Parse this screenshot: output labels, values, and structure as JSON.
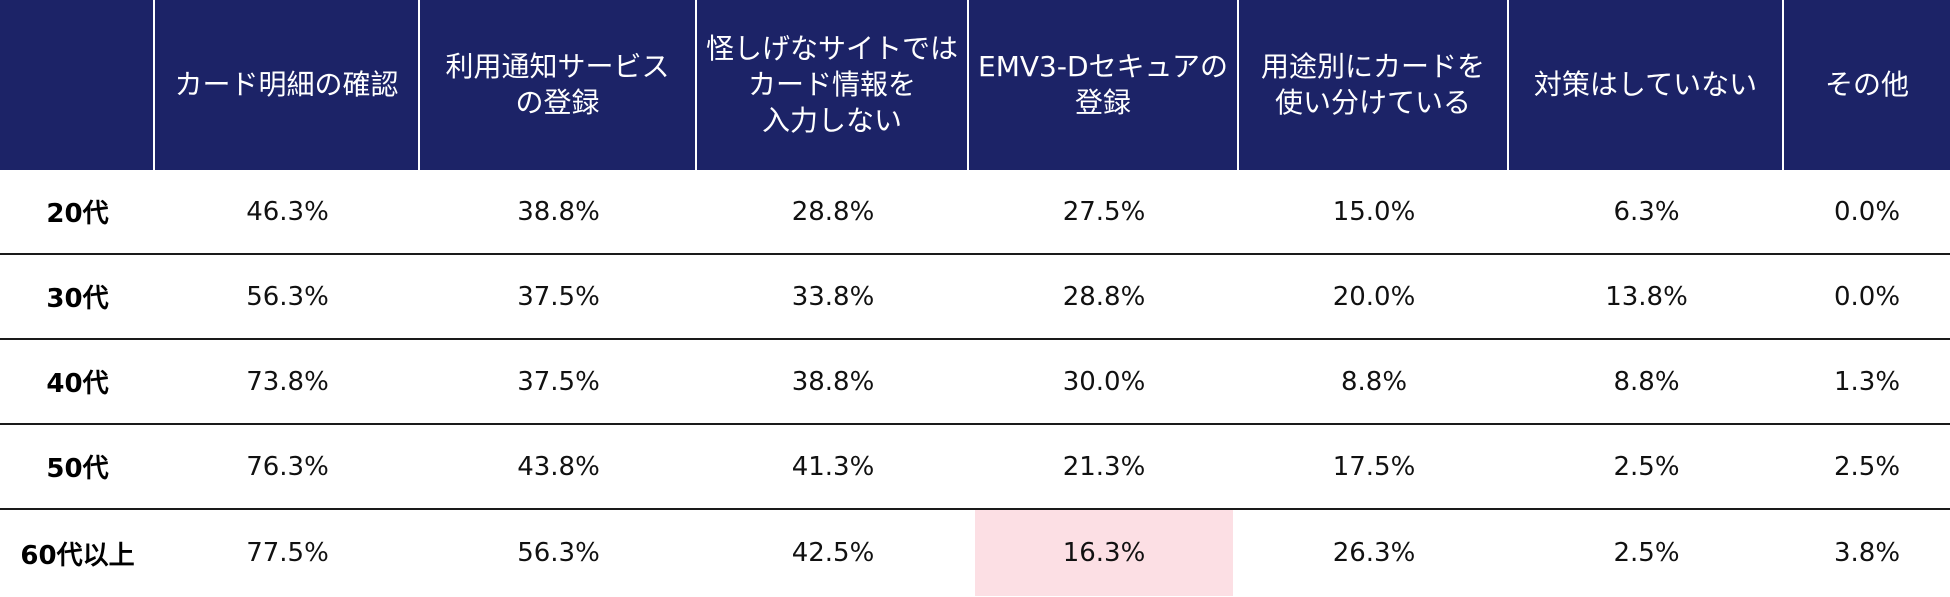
{
  "chart_data": {
    "type": "table",
    "columns": [
      "",
      "カード明細の確認",
      "利用通知サービス\nの登録",
      "怪しげなサイトでは\nカード情報を\n入力しない",
      "EMV3-Dセキュアの\n登録",
      "用途別にカードを\n使い分けている",
      "対策はしていない",
      "その他"
    ],
    "rows": [
      {
        "label": "20代",
        "values": [
          "46.3%",
          "38.8%",
          "28.8%",
          "27.5%",
          "15.0%",
          "6.3%",
          "0.0%"
        ]
      },
      {
        "label": "30代",
        "values": [
          "56.3%",
          "37.5%",
          "33.8%",
          "28.8%",
          "20.0%",
          "13.8%",
          "0.0%"
        ]
      },
      {
        "label": "40代",
        "values": [
          "73.8%",
          "37.5%",
          "38.8%",
          "30.0%",
          "8.8%",
          "8.8%",
          "1.3%"
        ]
      },
      {
        "label": "50代",
        "values": [
          "76.3%",
          "43.8%",
          "41.3%",
          "21.3%",
          "17.5%",
          "2.5%",
          "2.5%"
        ]
      },
      {
        "label": "60代以上",
        "values": [
          "77.5%",
          "56.3%",
          "42.5%",
          "16.3%",
          "26.3%",
          "2.5%",
          "3.8%"
        ]
      }
    ],
    "highlight": {
      "row": 4,
      "column": 3
    },
    "colors": {
      "header_bg": "#1c2367",
      "header_text": "#ffffff",
      "highlight_bg": "#fcdfe4"
    }
  }
}
